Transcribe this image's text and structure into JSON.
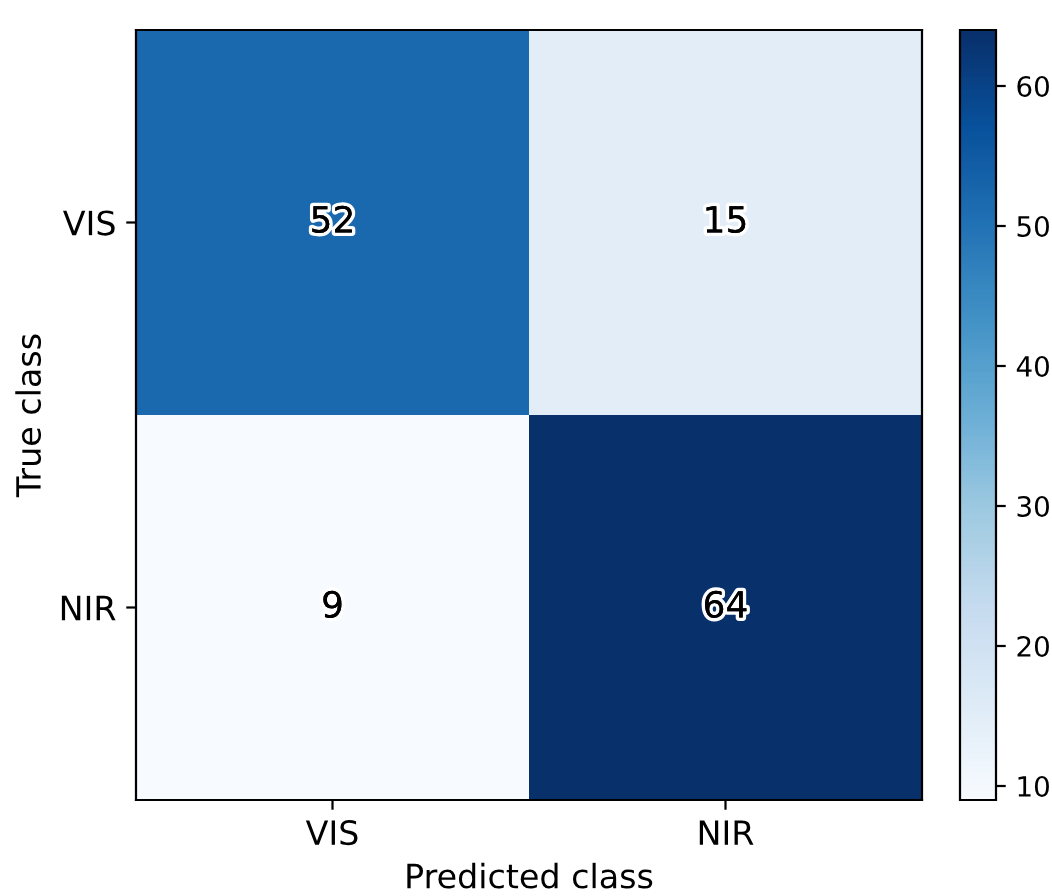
{
  "chart_data": {
    "type": "heatmap",
    "xlabel": "Predicted class",
    "ylabel": "True class",
    "categories": [
      "VIS",
      "NIR"
    ],
    "y_categories": [
      "VIS",
      "NIR"
    ],
    "cells": [
      [
        52,
        15
      ],
      [
        9,
        64
      ]
    ],
    "data_labels": true,
    "clim": [
      9,
      64
    ],
    "cticks": [
      10,
      20,
      30,
      40,
      50,
      60
    ],
    "grid": false
  }
}
